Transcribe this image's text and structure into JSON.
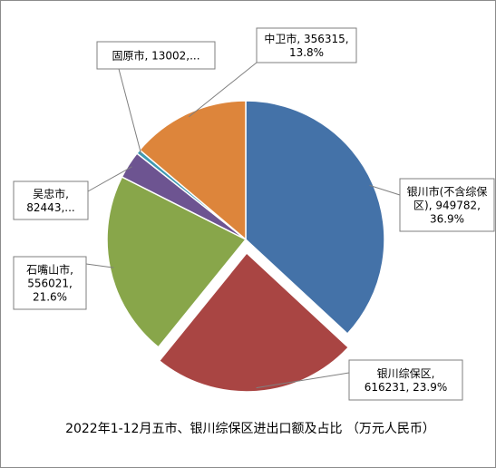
{
  "chart_data": {
    "type": "pie",
    "title": "2022年1-12月五市、银川综保区进出口额及占比 （万元人民币）",
    "slices": [
      {
        "name": "银川市(不含综保区)",
        "value": 949782,
        "percent": 36.9,
        "color": "#4472a8",
        "exploded": false,
        "label_lines": [
          "银川市(不含综保",
          "区), 949782,",
          "36.9%"
        ]
      },
      {
        "name": "银川综保区",
        "value": 616231,
        "percent": 23.9,
        "color": "#a94543",
        "exploded": true,
        "label_lines": [
          "银川综保区,",
          "616231, 23.9%"
        ]
      },
      {
        "name": "石嘴山市",
        "value": 556021,
        "percent": 21.6,
        "color": "#88a64a",
        "exploded": false,
        "label_lines": [
          "石嘴山市,",
          "556021,",
          "21.6%"
        ]
      },
      {
        "name": "吴忠市",
        "value": 82443,
        "percent": 3.2,
        "color": "#6d5491",
        "exploded": false,
        "label_lines": [
          "吴忠市,",
          "82443,..."
        ]
      },
      {
        "name": "固原市",
        "value": 13002,
        "percent": 0.5,
        "color": "#3f9ab2",
        "exploded": false,
        "label_lines": [
          "固原市, 13002,..."
        ]
      },
      {
        "name": "中卫市",
        "value": 356315,
        "percent": 13.8,
        "color": "#dd853b",
        "exploded": false,
        "label_lines": [
          "中卫市, 356315,",
          "13.8%"
        ]
      }
    ]
  }
}
